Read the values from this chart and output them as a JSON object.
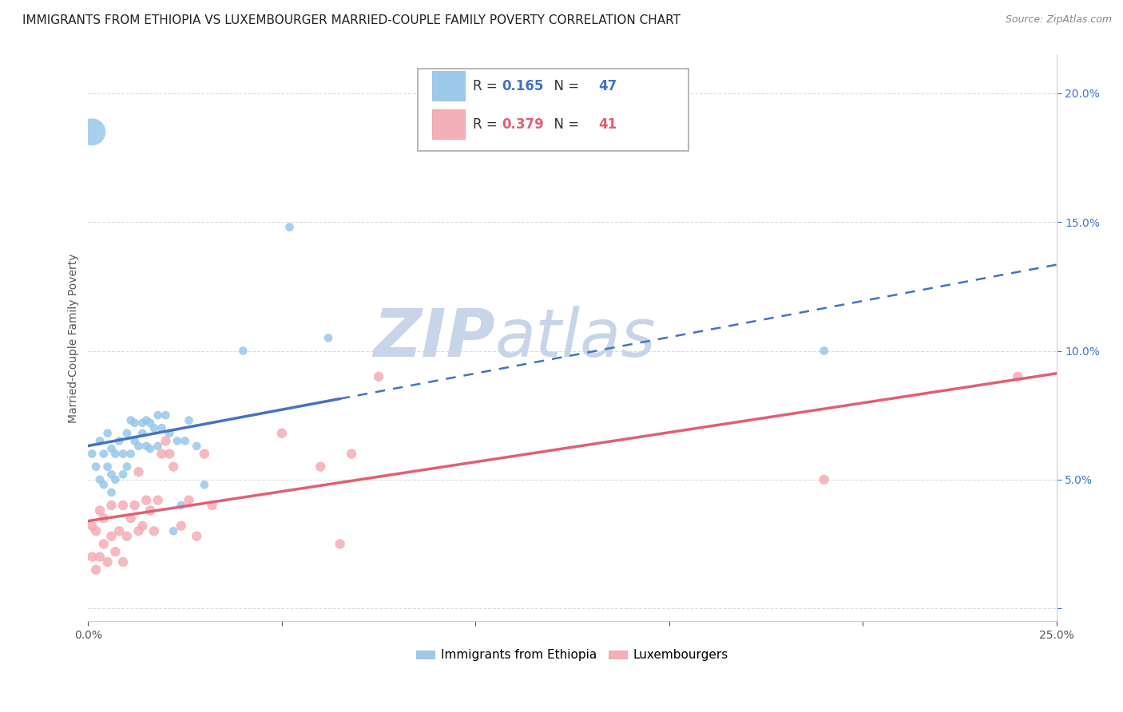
{
  "title": "IMMIGRANTS FROM ETHIOPIA VS LUXEMBOURGER MARRIED-COUPLE FAMILY POVERTY CORRELATION CHART",
  "source": "Source: ZipAtlas.com",
  "ylabel": "Married-Couple Family Poverty",
  "xlim": [
    0.0,
    0.25
  ],
  "ylim": [
    -0.005,
    0.215
  ],
  "legend_labels": [
    "Immigrants from Ethiopia",
    "Luxembourgers"
  ],
  "blue_color": "#93c5e8",
  "pink_color": "#f4a7b2",
  "blue_line_color": "#4472c4",
  "pink_line_color": "#e06070",
  "blue_line_solid_end": 0.065,
  "R_blue": 0.165,
  "N_blue": 47,
  "R_pink": 0.379,
  "N_pink": 41,
  "blue_scatter_x": [
    0.001,
    0.002,
    0.003,
    0.003,
    0.004,
    0.004,
    0.005,
    0.005,
    0.006,
    0.006,
    0.006,
    0.007,
    0.007,
    0.008,
    0.009,
    0.009,
    0.01,
    0.01,
    0.011,
    0.011,
    0.012,
    0.012,
    0.013,
    0.014,
    0.014,
    0.015,
    0.015,
    0.016,
    0.016,
    0.017,
    0.018,
    0.018,
    0.019,
    0.02,
    0.021,
    0.022,
    0.023,
    0.024,
    0.025,
    0.026,
    0.028,
    0.03,
    0.04,
    0.052,
    0.062,
    0.19,
    0.001
  ],
  "blue_scatter_y": [
    0.06,
    0.055,
    0.05,
    0.065,
    0.06,
    0.048,
    0.055,
    0.068,
    0.062,
    0.052,
    0.045,
    0.06,
    0.05,
    0.065,
    0.06,
    0.052,
    0.068,
    0.055,
    0.06,
    0.073,
    0.065,
    0.072,
    0.063,
    0.068,
    0.072,
    0.063,
    0.073,
    0.062,
    0.072,
    0.07,
    0.075,
    0.063,
    0.07,
    0.075,
    0.068,
    0.03,
    0.065,
    0.04,
    0.065,
    0.073,
    0.063,
    0.048,
    0.1,
    0.148,
    0.105,
    0.1,
    0.185
  ],
  "blue_scatter_size": [
    60,
    60,
    60,
    60,
    60,
    60,
    60,
    60,
    60,
    60,
    60,
    60,
    60,
    60,
    60,
    60,
    60,
    60,
    60,
    60,
    60,
    60,
    60,
    60,
    60,
    60,
    60,
    60,
    60,
    60,
    60,
    60,
    60,
    60,
    60,
    60,
    60,
    60,
    60,
    60,
    60,
    60,
    60,
    60,
    60,
    60,
    600
  ],
  "pink_scatter_x": [
    0.001,
    0.001,
    0.002,
    0.002,
    0.003,
    0.003,
    0.004,
    0.004,
    0.005,
    0.006,
    0.006,
    0.007,
    0.008,
    0.009,
    0.009,
    0.01,
    0.011,
    0.012,
    0.013,
    0.013,
    0.014,
    0.015,
    0.016,
    0.017,
    0.018,
    0.019,
    0.02,
    0.021,
    0.022,
    0.024,
    0.026,
    0.028,
    0.03,
    0.032,
    0.05,
    0.06,
    0.065,
    0.068,
    0.075,
    0.19,
    0.24
  ],
  "pink_scatter_y": [
    0.02,
    0.032,
    0.015,
    0.03,
    0.02,
    0.038,
    0.025,
    0.035,
    0.018,
    0.028,
    0.04,
    0.022,
    0.03,
    0.018,
    0.04,
    0.028,
    0.035,
    0.04,
    0.03,
    0.053,
    0.032,
    0.042,
    0.038,
    0.03,
    0.042,
    0.06,
    0.065,
    0.06,
    0.055,
    0.032,
    0.042,
    0.028,
    0.06,
    0.04,
    0.068,
    0.055,
    0.025,
    0.06,
    0.09,
    0.05,
    0.09
  ],
  "background_color": "#ffffff",
  "grid_color": "#dddddd",
  "title_fontsize": 11,
  "axis_label_fontsize": 10,
  "tick_fontsize": 10,
  "watermark_text": "ZIP",
  "watermark_text2": "atlas",
  "watermark_color1": "#c8d4e8",
  "watermark_color2": "#c8d4e8",
  "watermark_fontsize": 60
}
